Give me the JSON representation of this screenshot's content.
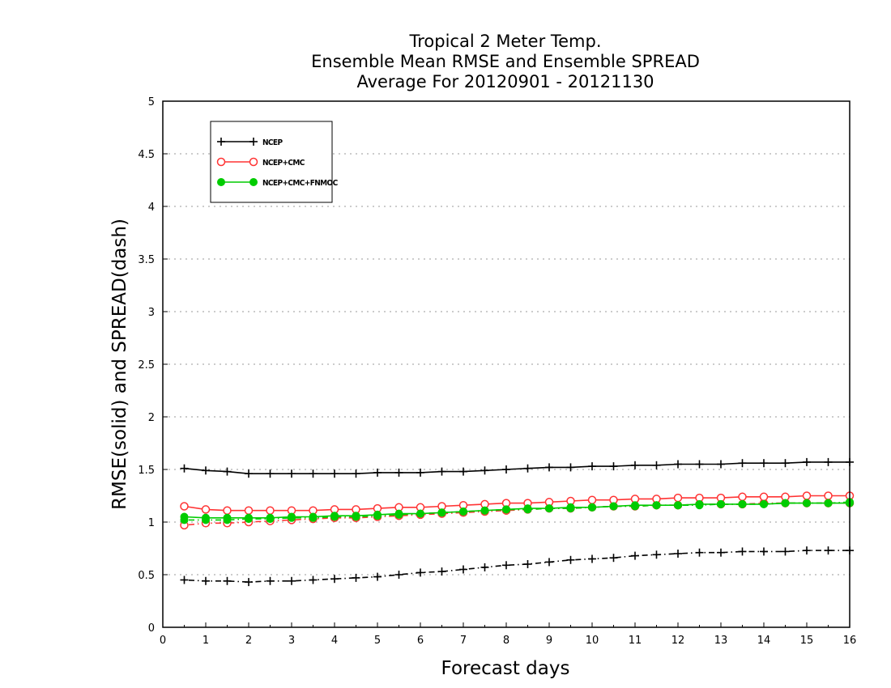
{
  "chart_data": {
    "type": "line",
    "title_lines": [
      "Tropical 2 Meter Temp.",
      "Ensemble Mean RMSE and Ensemble SPREAD",
      "Average For 20120901 - 20121130"
    ],
    "xlabel": "Forecast days",
    "ylabel": "RMSE(solid) and SPREAD(dash)",
    "xlim": [
      0,
      16
    ],
    "ylim": [
      0,
      5
    ],
    "x_ticks": [
      "0",
      "1",
      "2",
      "3",
      "4",
      "5",
      "6",
      "7",
      "8",
      "9",
      "10",
      "11",
      "12",
      "13",
      "14",
      "15",
      "16"
    ],
    "y_ticks": [
      "0",
      "0.5",
      "1",
      "1.5",
      "2",
      "2.5",
      "3",
      "3.5",
      "4",
      "4.5",
      "5"
    ],
    "grid": "horizontal dotted",
    "legend_position": "top-left",
    "x": [
      0.5,
      1,
      1.5,
      2,
      2.5,
      3,
      3.5,
      4,
      4.5,
      5,
      5.5,
      6,
      6.5,
      7,
      7.5,
      8,
      8.5,
      9,
      9.5,
      10,
      10.5,
      11,
      11.5,
      12,
      12.5,
      13,
      13.5,
      14,
      14.5,
      15,
      15.5,
      16
    ],
    "series": [
      {
        "name": "NCEP",
        "color": "#000000",
        "marker": "plus",
        "rmse": [
          1.51,
          1.49,
          1.48,
          1.46,
          1.46,
          1.46,
          1.46,
          1.46,
          1.46,
          1.47,
          1.47,
          1.47,
          1.48,
          1.48,
          1.49,
          1.5,
          1.51,
          1.52,
          1.52,
          1.53,
          1.53,
          1.54,
          1.54,
          1.55,
          1.55,
          1.55,
          1.56,
          1.56,
          1.56,
          1.57,
          1.57,
          1.57
        ],
        "spread": [
          0.45,
          0.44,
          0.44,
          0.43,
          0.44,
          0.44,
          0.45,
          0.46,
          0.47,
          0.48,
          0.5,
          0.52,
          0.53,
          0.55,
          0.57,
          0.59,
          0.6,
          0.62,
          0.64,
          0.65,
          0.66,
          0.68,
          0.69,
          0.7,
          0.71,
          0.71,
          0.72,
          0.72,
          0.72,
          0.73,
          0.73,
          0.73
        ]
      },
      {
        "name": "NCEP+CMC",
        "color": "#ff3333",
        "marker": "open-circle",
        "rmse": [
          1.15,
          1.12,
          1.11,
          1.11,
          1.11,
          1.11,
          1.11,
          1.12,
          1.12,
          1.13,
          1.14,
          1.14,
          1.15,
          1.16,
          1.17,
          1.18,
          1.18,
          1.19,
          1.2,
          1.21,
          1.21,
          1.22,
          1.22,
          1.23,
          1.23,
          1.23,
          1.24,
          1.24,
          1.24,
          1.25,
          1.25,
          1.25
        ],
        "spread": [
          0.97,
          0.99,
          0.99,
          1.0,
          1.01,
          1.02,
          1.03,
          1.04,
          1.04,
          1.05,
          1.06,
          1.07,
          1.08,
          1.09,
          1.1,
          1.11,
          1.12,
          1.13,
          1.13,
          1.14,
          1.15,
          1.15,
          1.16,
          1.16,
          1.17,
          1.17,
          1.17,
          1.18,
          1.18,
          1.18,
          1.18,
          1.18
        ]
      },
      {
        "name": "NCEP+CMC+FNMOC",
        "color": "#00cc00",
        "marker": "filled-circle",
        "rmse": [
          1.05,
          1.04,
          1.04,
          1.04,
          1.04,
          1.05,
          1.05,
          1.06,
          1.06,
          1.07,
          1.08,
          1.08,
          1.09,
          1.1,
          1.11,
          1.12,
          1.13,
          1.13,
          1.14,
          1.14,
          1.15,
          1.16,
          1.16,
          1.16,
          1.17,
          1.17,
          1.17,
          1.17,
          1.18,
          1.18,
          1.18,
          1.18
        ],
        "spread": [
          1.02,
          1.02,
          1.02,
          1.03,
          1.03,
          1.04,
          1.04,
          1.05,
          1.05,
          1.06,
          1.07,
          1.08,
          1.09,
          1.1,
          1.11,
          1.12,
          1.12,
          1.13,
          1.13,
          1.14,
          1.15,
          1.15,
          1.16,
          1.16,
          1.16,
          1.17,
          1.17,
          1.17,
          1.18,
          1.18,
          1.18,
          1.19
        ]
      }
    ]
  }
}
